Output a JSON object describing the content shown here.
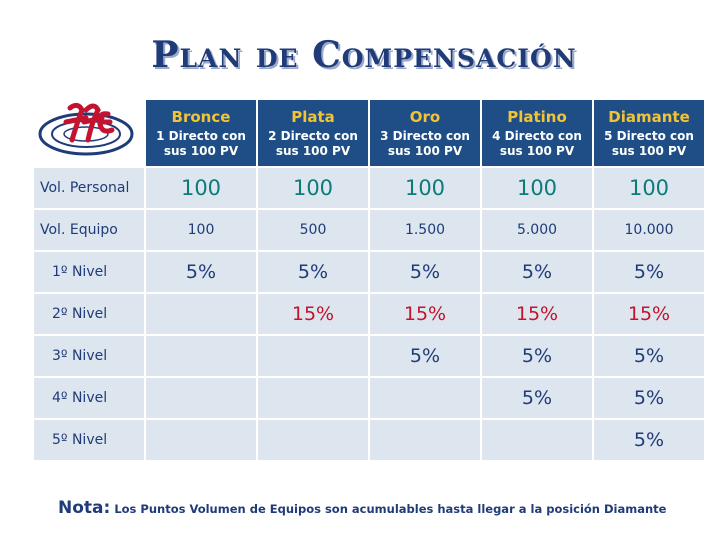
{
  "title": "Plan de Compensación",
  "colors": {
    "title": "#1f3b78",
    "header_bg": "#1f4e86",
    "header_name": "#f2c434",
    "cell_bg": "#dde5ef",
    "red": "#c4122f",
    "teal": "#0b7b7a"
  },
  "logo_icon": "company-logo-swirl",
  "ranks": [
    {
      "name": "Bronce",
      "req1": "1 Directo con",
      "req2": "sus 100 PV"
    },
    {
      "name": "Plata",
      "req1": "2 Directo con",
      "req2": "sus 100 PV"
    },
    {
      "name": "Oro",
      "req1": "3 Directo con",
      "req2": "sus 100 PV"
    },
    {
      "name": "Platino",
      "req1": "4 Directo con",
      "req2": "sus 100 PV"
    },
    {
      "name": "Diamante",
      "req1": "5 Directo con",
      "req2": "sus 100 PV"
    }
  ],
  "rows": [
    {
      "label": "Vol. Personal",
      "values": [
        "100",
        "100",
        "100",
        "100",
        "100"
      ]
    },
    {
      "label": "Vol. Equipo",
      "values": [
        "100",
        "500",
        "1.500",
        "5.000",
        "10.000"
      ]
    },
    {
      "label": "1º Nivel",
      "values": [
        "5%",
        "5%",
        "5%",
        "5%",
        "5%"
      ]
    },
    {
      "label": "2º Nivel",
      "values": [
        "",
        "15%",
        "15%",
        "15%",
        "15%"
      ]
    },
    {
      "label": "3º Nivel",
      "values": [
        "",
        "",
        "5%",
        "5%",
        "5%"
      ]
    },
    {
      "label": "4º Nivel",
      "values": [
        "",
        "",
        "",
        "5%",
        "5%"
      ]
    },
    {
      "label": "5º Nivel",
      "values": [
        "",
        "",
        "",
        "",
        "5%"
      ]
    }
  ],
  "note": {
    "label": "Nota:",
    "text": "Los Puntos Volumen de Equipos son acumulables hasta llegar a la posición Diamante"
  }
}
